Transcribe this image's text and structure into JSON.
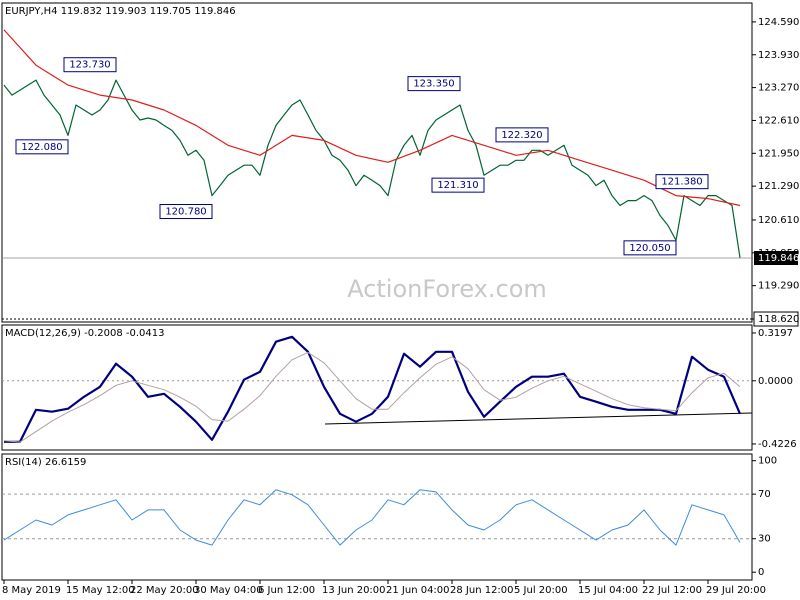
{
  "chart_data": [
    {
      "type": "line",
      "title": "EURJPY,H4  119.832 119.903 119.705 119.846",
      "watermark": "ActionForex.com",
      "xlim": [
        0,
        92
      ],
      "ylim": [
        118.56,
        124.97
      ],
      "yticks": [
        {
          "value": 124.59,
          "label": "124.590"
        },
        {
          "value": 123.93,
          "label": "123.930"
        },
        {
          "value": 123.27,
          "label": "123.270"
        },
        {
          "value": 122.61,
          "label": "122.610"
        },
        {
          "value": 121.95,
          "label": "121.950"
        },
        {
          "value": 121.29,
          "label": "121.290"
        },
        {
          "value": 120.61,
          "label": "120.610"
        },
        {
          "value": 119.95,
          "label": "119.950"
        },
        {
          "value": 119.29,
          "label": "119.290"
        },
        {
          "value": 118.62,
          "label": "118.620"
        }
      ],
      "last_price": {
        "value": 119.846,
        "label": "119.846"
      },
      "series": [
        {
          "color": "#006432",
          "width": 1.2,
          "x": [
            0,
            1,
            2,
            3,
            4,
            5,
            6,
            7,
            8,
            9,
            10,
            11,
            12,
            13,
            14,
            15,
            16,
            17,
            18,
            19,
            20,
            21,
            22,
            23,
            24,
            25,
            26,
            27,
            28,
            29,
            30,
            31,
            32,
            33,
            34,
            35,
            36,
            37,
            38,
            39,
            40,
            41,
            42,
            43,
            44,
            45,
            46,
            47,
            48,
            49,
            50,
            51,
            52,
            53,
            54,
            55,
            56,
            57,
            58,
            59,
            60,
            61,
            62,
            63,
            64,
            65,
            66,
            67,
            68,
            69,
            70,
            71,
            72,
            73,
            74,
            75,
            76,
            77,
            78,
            79,
            80,
            81,
            82,
            83,
            84,
            85,
            86,
            87,
            88,
            89,
            90,
            91,
            92
          ],
          "values": [
            123.32,
            123.12,
            123.22,
            123.32,
            123.42,
            123.12,
            122.92,
            122.72,
            122.31,
            122.92,
            122.82,
            122.72,
            122.82,
            123.02,
            123.42,
            123.12,
            122.82,
            122.62,
            122.66,
            122.62,
            122.51,
            122.41,
            122.21,
            121.91,
            122.01,
            121.81,
            121.1,
            121.3,
            121.51,
            121.61,
            121.71,
            121.71,
            121.51,
            122.11,
            122.51,
            122.72,
            122.92,
            123.02,
            122.72,
            122.41,
            122.21,
            121.91,
            121.81,
            121.61,
            121.3,
            121.51,
            121.41,
            121.3,
            121.1,
            121.81,
            122.11,
            122.31,
            121.91,
            122.41,
            122.62,
            122.72,
            122.82,
            122.92,
            122.41,
            122.11,
            121.51,
            121.61,
            121.71,
            121.71,
            121.81,
            121.81,
            122.01,
            122.01,
            121.91,
            122.01,
            122.11,
            121.71,
            121.61,
            121.51,
            121.3,
            121.41,
            121.1,
            120.9,
            121.0,
            121.0,
            121.1,
            121.0,
            120.7,
            120.5,
            120.2,
            121.1,
            121.0,
            120.9,
            121.1,
            121.1,
            121.0,
            120.9,
            119.85
          ]
        },
        {
          "color": "#e01e1e",
          "width": 1.2,
          "x": [
            0,
            4,
            8,
            12,
            16,
            20,
            24,
            28,
            32,
            36,
            40,
            44,
            48,
            52,
            56,
            60,
            64,
            68,
            72,
            76,
            80,
            84,
            88,
            92
          ],
          "values": [
            124.43,
            123.72,
            123.32,
            123.12,
            123.02,
            122.82,
            122.51,
            122.11,
            121.91,
            122.31,
            122.21,
            121.91,
            121.77,
            122.01,
            122.31,
            122.11,
            121.91,
            122.01,
            121.81,
            121.61,
            121.41,
            121.1,
            121.04,
            120.9
          ]
        }
      ],
      "annotations": [
        {
          "label": "123.730",
          "x": 14,
          "y": 123.73
        },
        {
          "label": "122.080",
          "x": 8,
          "y": 122.08
        },
        {
          "label": "120.780",
          "x": 26,
          "y": 120.78
        },
        {
          "label": "123.350",
          "x": 57,
          "y": 123.35
        },
        {
          "label": "121.310",
          "x": 60,
          "y": 121.31
        },
        {
          "label": "122.320",
          "x": 68,
          "y": 122.32
        },
        {
          "label": "121.380",
          "x": 88,
          "y": 121.38
        },
        {
          "label": "120.050",
          "x": 84,
          "y": 120.05
        }
      ]
    },
    {
      "type": "line",
      "title": "MACD(12,26,9) -0.2008 -0.0413",
      "xlim": [
        0,
        92
      ],
      "ylim": [
        -0.463,
        0.373
      ],
      "yticks": [
        0.3197,
        {
          "value": 0,
          "label": "0.0000"
        },
        -0.4226
      ],
      "series": [
        {
          "color": "#000080",
          "width": 2.2,
          "x": [
            0,
            2,
            4,
            6,
            8,
            10,
            12,
            14,
            16,
            18,
            20,
            22,
            24,
            26,
            28,
            30,
            32,
            34,
            36,
            38,
            40,
            42,
            44,
            46,
            48,
            50,
            52,
            54,
            56,
            58,
            60,
            62,
            64,
            66,
            68,
            70,
            72,
            74,
            76,
            78,
            80,
            82,
            84,
            86,
            88,
            90,
            92
          ],
          "values": [
            -0.408,
            -0.408,
            -0.194,
            -0.207,
            -0.187,
            -0.107,
            -0.04,
            0.114,
            0.027,
            -0.107,
            -0.087,
            -0.174,
            -0.274,
            -0.395,
            -0.207,
            0.007,
            0.06,
            0.261,
            0.294,
            0.194,
            -0.04,
            -0.221,
            -0.274,
            -0.221,
            -0.107,
            0.181,
            0.094,
            0.194,
            0.194,
            -0.074,
            -0.241,
            -0.14,
            -0.04,
            0.027,
            0.027,
            0.047,
            -0.107,
            -0.14,
            -0.174,
            -0.194,
            -0.194,
            -0.194,
            -0.221,
            0.161,
            0.074,
            0.027,
            -0.221
          ]
        },
        {
          "color": "#b4a0a0",
          "width": 1,
          "x": [
            0,
            2,
            4,
            6,
            8,
            10,
            12,
            14,
            16,
            18,
            20,
            22,
            24,
            26,
            28,
            30,
            32,
            34,
            36,
            38,
            40,
            42,
            44,
            46,
            48,
            50,
            52,
            54,
            56,
            58,
            60,
            62,
            64,
            66,
            68,
            70,
            72,
            74,
            76,
            78,
            80,
            82,
            84,
            86,
            88,
            90,
            92
          ],
          "values": [
            -0.4,
            -0.41,
            -0.34,
            -0.27,
            -0.21,
            -0.16,
            -0.1,
            -0.03,
            0,
            -0.03,
            -0.06,
            -0.11,
            -0.17,
            -0.26,
            -0.27,
            -0.19,
            -0.1,
            0.03,
            0.14,
            0.19,
            0.12,
            0,
            -0.12,
            -0.19,
            -0.19,
            -0.08,
            0.02,
            0.11,
            0.16,
            0.08,
            -0.06,
            -0.13,
            -0.11,
            -0.05,
            0,
            0.03,
            -0.02,
            -0.07,
            -0.12,
            -0.16,
            -0.18,
            -0.19,
            -0.2,
            -0.08,
            0.02,
            0.05,
            -0.04
          ]
        }
      ]
    },
    {
      "type": "line",
      "title": "RSI(14) 26.6159",
      "xlim": [
        0,
        92
      ],
      "ylim": [
        -7,
        106
      ],
      "yticks": [
        100,
        70,
        30,
        0
      ],
      "levels": [
        70,
        30
      ],
      "xticks": [
        {
          "value": 0,
          "label": "8 May 2019"
        },
        {
          "value": 8,
          "label": "15 May 12:00"
        },
        {
          "value": 16,
          "label": "22 May 20:00"
        },
        {
          "value": 24,
          "label": "30 May 04:00"
        },
        {
          "value": 32,
          "label": "6 Jun 12:00"
        },
        {
          "value": 40,
          "label": "13 Jun 20:00"
        },
        {
          "value": 48,
          "label": "21 Jun 04:00"
        },
        {
          "value": 56,
          "label": "28 Jun 12:00"
        },
        {
          "value": 64,
          "label": "5 Jul 20:00"
        },
        {
          "value": 72,
          "label": "15 Jul 04:00"
        },
        {
          "value": 80,
          "label": "22 Jul 12:00"
        },
        {
          "value": 88,
          "label": "29 Jul 20:00"
        }
      ],
      "series": [
        {
          "color": "#3c8cdc",
          "width": 1,
          "x": [
            0,
            2,
            4,
            6,
            8,
            10,
            12,
            14,
            16,
            18,
            20,
            22,
            24,
            26,
            28,
            30,
            32,
            34,
            36,
            38,
            40,
            42,
            44,
            46,
            48,
            50,
            52,
            54,
            56,
            58,
            60,
            62,
            64,
            66,
            68,
            70,
            72,
            74,
            76,
            78,
            80,
            82,
            84,
            86,
            88,
            90,
            92
          ],
          "values": [
            28.8,
            37.8,
            46.8,
            42.3,
            51.4,
            55.9,
            60.4,
            64.9,
            46.8,
            55.9,
            55.9,
            37.8,
            28.8,
            24.3,
            46.8,
            64.9,
            60.4,
            73.9,
            69.4,
            60.4,
            42.3,
            24.3,
            37.8,
            46.8,
            64.9,
            60.4,
            73.9,
            72,
            55.9,
            42.3,
            37.8,
            46.8,
            60.4,
            64.9,
            55.9,
            46.8,
            37.8,
            28.8,
            37.8,
            42.3,
            55.9,
            37.8,
            24.3,
            60.4,
            55.9,
            51.4,
            26.6
          ]
        }
      ]
    }
  ]
}
